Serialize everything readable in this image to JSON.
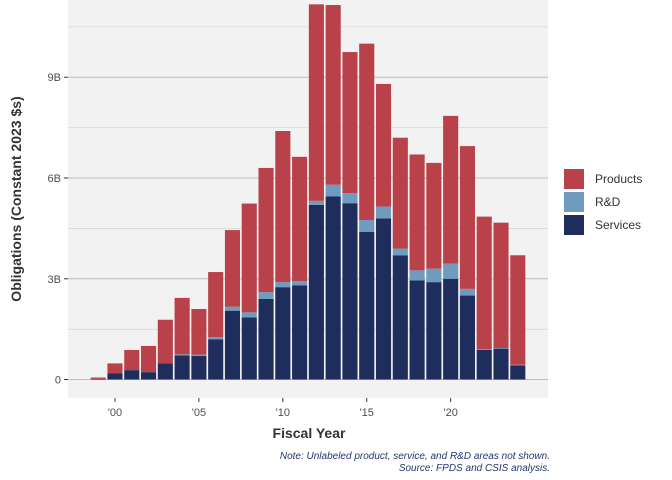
{
  "chart_data": {
    "type": "bar",
    "stacked": true,
    "xlabel": "Fiscal Year",
    "ylabel": "Obligations (Constant 2023 $s)",
    "x": [
      1999,
      2000,
      2001,
      2002,
      2003,
      2004,
      2005,
      2006,
      2007,
      2008,
      2009,
      2010,
      2011,
      2012,
      2013,
      2014,
      2015,
      2016,
      2017,
      2018,
      2019,
      2020,
      2021,
      2022,
      2023,
      2024
    ],
    "xlim": [
      1997.2,
      2025.8
    ],
    "ylim": [
      -0.55,
      11.3
    ],
    "x_ticks": [
      {
        "value": 2000,
        "label": "'00"
      },
      {
        "value": 2005,
        "label": "'05"
      },
      {
        "value": 2010,
        "label": "'10"
      },
      {
        "value": 2015,
        "label": "'15"
      },
      {
        "value": 2020,
        "label": "'20"
      }
    ],
    "y_ticks": [
      {
        "value": 0,
        "label": "0"
      },
      {
        "value": 3,
        "label": "3B"
      },
      {
        "value": 6,
        "label": "6B"
      },
      {
        "value": 9,
        "label": "9B"
      }
    ],
    "y_minor_ticks": [
      1.5,
      4.5,
      7.5,
      10.5
    ],
    "unit": "billions of constant 2023 dollars",
    "series": [
      {
        "name": "Services",
        "color": "#1f2d5c",
        "values": [
          0.02,
          0.18,
          0.28,
          0.22,
          0.48,
          0.72,
          0.7,
          1.2,
          2.05,
          1.85,
          2.4,
          2.75,
          2.8,
          5.2,
          5.45,
          5.25,
          4.4,
          4.8,
          3.7,
          2.95,
          2.9,
          3.0,
          2.5,
          0.88,
          0.92,
          0.42
        ]
      },
      {
        "name": "R&D",
        "color": "#6f9bbf",
        "values": [
          0.0,
          0.0,
          0.0,
          0.0,
          0.0,
          0.03,
          0.04,
          0.06,
          0.12,
          0.15,
          0.2,
          0.15,
          0.13,
          0.12,
          0.35,
          0.3,
          0.35,
          0.35,
          0.2,
          0.3,
          0.4,
          0.45,
          0.2,
          0.02,
          0.02,
          0.02
        ]
      },
      {
        "name": "Products",
        "color": "#b9424a",
        "values": [
          0.04,
          0.3,
          0.6,
          0.78,
          1.3,
          1.68,
          1.36,
          1.94,
          2.28,
          3.24,
          3.7,
          4.5,
          3.7,
          5.85,
          5.35,
          4.2,
          5.25,
          3.65,
          3.3,
          3.45,
          3.15,
          4.4,
          4.25,
          3.95,
          3.73,
          3.26
        ]
      }
    ],
    "legend_position": "right",
    "legend_order": [
      "Products",
      "R&D",
      "Services"
    ],
    "grid": true,
    "panel_background": "#f2f2f2",
    "note": "Note: Unlabeled product, service, and R&D areas not shown.",
    "source": "Source: FPDS and CSIS analysis."
  }
}
